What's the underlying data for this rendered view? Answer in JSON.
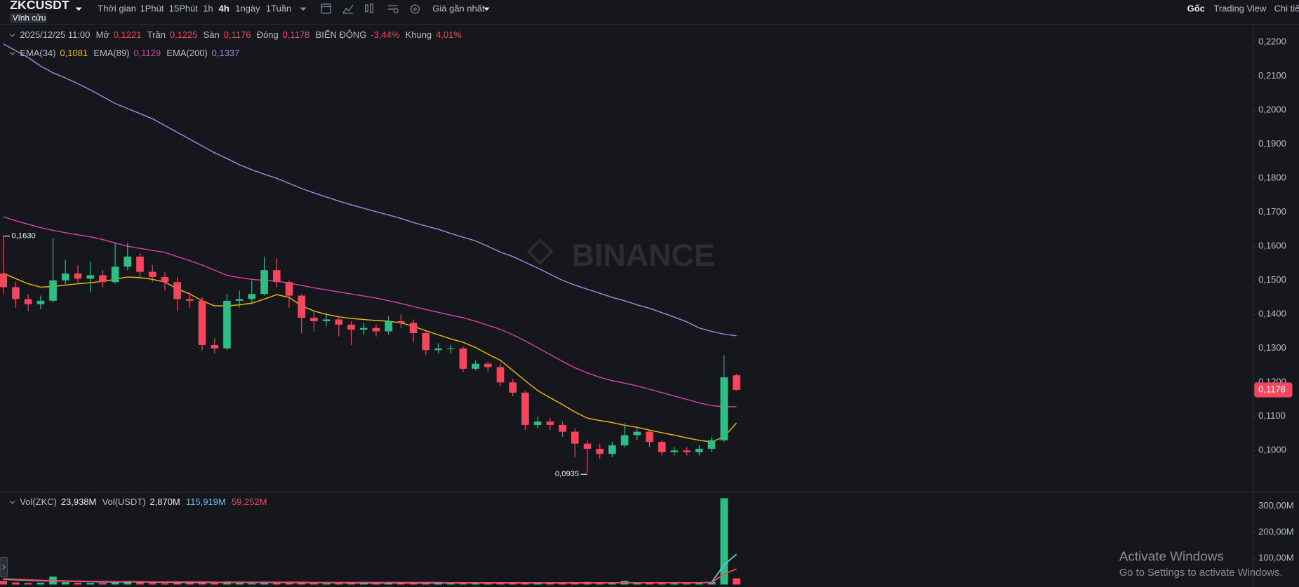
{
  "toolbar": {
    "symbol": "ZKCUSDT",
    "badge": "Vĩnh cửu",
    "intervals": [
      "Thời gian",
      "1Phút",
      "15Phút",
      "1h",
      "4h",
      "1ngày",
      "1Tuần"
    ],
    "active_interval": "4h",
    "price_source": "Giá gần nhất",
    "views": [
      "Gốc",
      "Trading View",
      "Chi tiết"
    ],
    "active_view": "Gốc"
  },
  "watermark": "BINANCE",
  "os_notice": {
    "title": "Activate Windows",
    "text": "Go to Settings to activate Windows."
  },
  "chart_data": [
    {
      "type": "candlestick",
      "legend_date": "2025/12/25 11:00",
      "legend_fields": [
        {
          "label": "Mở",
          "value": "0,1221"
        },
        {
          "label": "Trần",
          "value": "0,1225"
        },
        {
          "label": "Sàn",
          "value": "0,1176"
        },
        {
          "label": "Đóng",
          "value": "0,1178"
        },
        {
          "label": "BIẾN ĐỘNG",
          "value": "-3,44%"
        },
        {
          "label": "Khung",
          "value": "4,01%"
        }
      ],
      "open": [
        0.152,
        0.148,
        0.1445,
        0.143,
        0.144,
        0.15,
        0.152,
        0.1505,
        0.1515,
        0.1495,
        0.154,
        0.157,
        0.1525,
        0.151,
        0.1495,
        0.1445,
        0.144,
        0.131,
        0.13,
        0.144,
        0.1445,
        0.146,
        0.153,
        0.1495,
        0.1455,
        0.139,
        0.138,
        0.1385,
        0.137,
        0.1355,
        0.136,
        0.135,
        0.138,
        0.1375,
        0.1345,
        0.1295,
        0.13,
        0.13,
        0.124,
        0.1255,
        0.1245,
        0.12,
        0.117,
        0.1075,
        0.1085,
        0.1075,
        0.1055,
        0.102,
        0.1005,
        0.099,
        0.1015,
        0.1045,
        0.1055,
        0.1025,
        0.0995,
        0.1,
        0.0995,
        0.1005,
        0.103,
        0.1221
      ],
      "high": [
        0.163,
        0.1495,
        0.146,
        0.1455,
        0.1625,
        0.156,
        0.1545,
        0.1555,
        0.153,
        0.161,
        0.161,
        0.158,
        0.1545,
        0.1525,
        0.151,
        0.1465,
        0.145,
        0.133,
        0.146,
        0.147,
        0.15,
        0.157,
        0.1565,
        0.15,
        0.146,
        0.141,
        0.1405,
        0.1395,
        0.138,
        0.1375,
        0.137,
        0.1395,
        0.14,
        0.1385,
        0.135,
        0.1315,
        0.131,
        0.1305,
        0.1265,
        0.126,
        0.1255,
        0.121,
        0.1175,
        0.11,
        0.1095,
        0.1085,
        0.1065,
        0.103,
        0.102,
        0.1025,
        0.108,
        0.1065,
        0.106,
        0.103,
        0.101,
        0.101,
        0.1015,
        0.104,
        0.128,
        0.1225
      ],
      "low": [
        0.146,
        0.142,
        0.141,
        0.1415,
        0.1435,
        0.1485,
        0.149,
        0.1465,
        0.148,
        0.149,
        0.153,
        0.151,
        0.1495,
        0.147,
        0.141,
        0.142,
        0.1295,
        0.1285,
        0.1295,
        0.142,
        0.143,
        0.1455,
        0.148,
        0.142,
        0.1345,
        0.135,
        0.1365,
        0.1335,
        0.131,
        0.134,
        0.1335,
        0.134,
        0.136,
        0.132,
        0.128,
        0.1285,
        0.1285,
        0.123,
        0.1235,
        0.123,
        0.119,
        0.116,
        0.106,
        0.1065,
        0.106,
        0.104,
        0.098,
        0.0935,
        0.0975,
        0.098,
        0.101,
        0.103,
        0.101,
        0.0985,
        0.0985,
        0.0985,
        0.0985,
        0.0995,
        0.1025,
        0.1176
      ],
      "close": [
        0.148,
        0.1445,
        0.143,
        0.144,
        0.15,
        0.152,
        0.1505,
        0.1515,
        0.1495,
        0.154,
        0.157,
        0.1525,
        0.151,
        0.1495,
        0.1445,
        0.144,
        0.131,
        0.13,
        0.144,
        0.1445,
        0.146,
        0.153,
        0.1495,
        0.1455,
        0.139,
        0.138,
        0.1385,
        0.137,
        0.1355,
        0.136,
        0.135,
        0.138,
        0.1375,
        0.1345,
        0.1295,
        0.13,
        0.13,
        0.124,
        0.1255,
        0.1245,
        0.12,
        0.117,
        0.1075,
        0.1085,
        0.1075,
        0.1055,
        0.102,
        0.1005,
        0.099,
        0.1015,
        0.1045,
        0.1055,
        0.1025,
        0.0995,
        0.1,
        0.0995,
        0.1005,
        0.103,
        0.1215,
        0.1178
      ],
      "up_color": "#2ebd85",
      "down_color": "#f6465d",
      "series": [
        {
          "name": "EMA(34)",
          "color": "#f0b90b",
          "value_label": "0,1081",
          "values": [
            0.1521,
            0.1505,
            0.149,
            0.148,
            0.1482,
            0.1486,
            0.149,
            0.1493,
            0.1497,
            0.1503,
            0.151,
            0.1508,
            0.1503,
            0.1495,
            0.1475,
            0.146,
            0.144,
            0.1425,
            0.1425,
            0.1428,
            0.1433,
            0.1445,
            0.1458,
            0.145,
            0.1425,
            0.141,
            0.14,
            0.1393,
            0.1388,
            0.1385,
            0.1382,
            0.138,
            0.1375,
            0.1365,
            0.1352,
            0.134,
            0.1328,
            0.1318,
            0.1303,
            0.1283,
            0.1265,
            0.1235,
            0.1205,
            0.1176,
            0.1155,
            0.1135,
            0.1113,
            0.1095,
            0.1088,
            0.1082,
            0.1074,
            0.1068,
            0.106,
            0.1052,
            0.1045,
            0.1037,
            0.103,
            0.1025,
            0.104,
            0.1081
          ]
        },
        {
          "name": "EMA(89)",
          "color": "#d940a8",
          "value_label": "0,1129",
          "values": [
            0.1687,
            0.1675,
            0.1665,
            0.1655,
            0.1647,
            0.164,
            0.1634,
            0.1628,
            0.162,
            0.161,
            0.16,
            0.1594,
            0.1588,
            0.1582,
            0.157,
            0.1558,
            0.1545,
            0.153,
            0.1515,
            0.1508,
            0.1503,
            0.15,
            0.1498,
            0.1492,
            0.1485,
            0.1478,
            0.1472,
            0.1466,
            0.146,
            0.1454,
            0.1448,
            0.144,
            0.1432,
            0.1423,
            0.1414,
            0.1406,
            0.1398,
            0.139,
            0.138,
            0.1368,
            0.1356,
            0.134,
            0.1322,
            0.1302,
            0.1282,
            0.1262,
            0.1243,
            0.1228,
            0.1215,
            0.1205,
            0.1198,
            0.119,
            0.118,
            0.117,
            0.116,
            0.115,
            0.114,
            0.1132,
            0.1128,
            0.1129
          ]
        },
        {
          "name": "EMA(200)",
          "color": "#9a8ae6",
          "value_label": "0,1337",
          "values": [
            0.2195,
            0.2175,
            0.2155,
            0.213,
            0.211,
            0.2095,
            0.2078,
            0.206,
            0.204,
            0.202,
            0.2005,
            0.199,
            0.1975,
            0.1955,
            0.1935,
            0.1915,
            0.1895,
            0.1875,
            0.1858,
            0.184,
            0.1825,
            0.1812,
            0.18,
            0.1785,
            0.177,
            0.1757,
            0.1745,
            0.1733,
            0.1722,
            0.1712,
            0.1702,
            0.1692,
            0.1682,
            0.167,
            0.166,
            0.165,
            0.1638,
            0.1627,
            0.1616,
            0.16,
            0.1583,
            0.157,
            0.1553,
            0.1536,
            0.1518,
            0.15,
            0.1486,
            0.1474,
            0.1462,
            0.145,
            0.144,
            0.1428,
            0.1418,
            0.1405,
            0.1392,
            0.1378,
            0.136,
            0.135,
            0.1342,
            0.1337
          ]
        }
      ],
      "ylim": [
        0.0881,
        0.2251
      ],
      "yticks": [
        {
          "value": 0.22,
          "label": "0,2200"
        },
        {
          "value": 0.21,
          "label": "0,2100"
        },
        {
          "value": 0.2,
          "label": "0,2000"
        },
        {
          "value": 0.19,
          "label": "0,1900"
        },
        {
          "value": 0.18,
          "label": "0,1800"
        },
        {
          "value": 0.17,
          "label": "0,1700"
        },
        {
          "value": 0.16,
          "label": "0,1600"
        },
        {
          "value": 0.15,
          "label": "0,1500"
        },
        {
          "value": 0.14,
          "label": "0,1400"
        },
        {
          "value": 0.13,
          "label": "0,1300"
        },
        {
          "value": 0.12,
          "label": "0,1200"
        },
        {
          "value": 0.11,
          "label": "0,1100"
        },
        {
          "value": 0.1,
          "label": "0,1000"
        }
      ],
      "annotations": [
        {
          "value": 0.163,
          "text": "0,1630"
        },
        {
          "value": 0.0935,
          "text": "0,0935"
        }
      ],
      "last_price": {
        "value": 0.1178,
        "label": "0,1178"
      }
    },
    {
      "type": "bar",
      "legend": [
        {
          "label": "Vol(ZKC)",
          "value": "23,938M"
        },
        {
          "label": "Vol(USDT)",
          "value": "2,870M"
        }
      ],
      "values": [
        14,
        8,
        6,
        7,
        30,
        9,
        7,
        6,
        6,
        12,
        14,
        8,
        6,
        5,
        7,
        6,
        11,
        9,
        12,
        6,
        5,
        9,
        7,
        6,
        8,
        5,
        4,
        5,
        6,
        4,
        5,
        7,
        5,
        6,
        8,
        4,
        4,
        7,
        5,
        4,
        6,
        7,
        9,
        5,
        4,
        5,
        8,
        10,
        7,
        6,
        14,
        6,
        5,
        5,
        4,
        4,
        5,
        10,
        330,
        23.938
      ],
      "series": [
        {
          "color": "#6ec1e4",
          "value_label": "115,919M",
          "values": [
            20,
            18,
            16,
            14,
            14,
            13,
            12,
            11,
            10,
            10,
            10,
            10,
            9,
            9,
            8,
            8,
            8,
            8,
            8,
            8,
            8,
            8,
            8,
            8,
            7,
            7,
            7,
            7,
            6,
            6,
            6,
            6,
            6,
            6,
            6,
            6,
            6,
            6,
            6,
            6,
            6,
            6,
            6,
            6,
            6,
            6,
            6,
            6,
            7,
            7,
            7,
            7,
            7,
            7,
            7,
            7,
            7,
            8,
            75,
            115.919
          ]
        },
        {
          "color": "#f6465d",
          "value_label": "59,252M",
          "values": [
            22,
            20,
            18,
            16,
            15,
            14,
            13,
            12,
            12,
            11,
            11,
            11,
            10,
            10,
            10,
            10,
            10,
            9,
            9,
            9,
            9,
            9,
            9,
            9,
            9,
            8,
            8,
            8,
            8,
            8,
            8,
            8,
            8,
            8,
            8,
            8,
            7,
            7,
            7,
            7,
            7,
            7,
            7,
            7,
            7,
            7,
            7,
            7,
            7,
            7,
            7,
            7,
            7,
            7,
            7,
            7,
            7,
            8,
            40,
            59.252
          ]
        }
      ],
      "ylim": [
        0,
        345
      ],
      "yticks": [
        {
          "value": 100,
          "label": "100,00M"
        },
        {
          "value": 200,
          "label": "200,00M"
        },
        {
          "value": 300,
          "label": "300,00M"
        }
      ]
    }
  ]
}
